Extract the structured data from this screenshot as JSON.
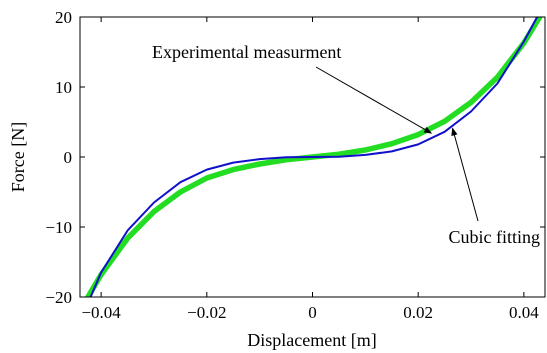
{
  "chart_data": {
    "type": "line",
    "title": "",
    "xlabel": "Displacement [m]",
    "ylabel": "Force [N]",
    "xlim": [
      -0.044,
      0.044
    ],
    "ylim": [
      -20,
      20
    ],
    "xticks": [
      -0.04,
      -0.02,
      0,
      0.02,
      0.04
    ],
    "yticks": [
      -20,
      -10,
      0,
      10,
      20
    ],
    "xtick_labels": [
      "−0.04",
      "−0.02",
      "0",
      "0.02",
      "0.04"
    ],
    "ytick_labels": [
      "−20",
      "−10",
      "0",
      "10",
      "20"
    ],
    "grid": false,
    "legend": "none",
    "series": [
      {
        "color": "#22dd22",
        "style": "thick noisy line",
        "x": [
          -0.0425,
          -0.04,
          -0.035,
          -0.03,
          -0.025,
          -0.02,
          -0.015,
          -0.01,
          -0.005,
          0,
          0.005,
          0.01,
          0.015,
          0.02,
          0.025,
          0.03,
          0.035,
          0.04,
          0.043
        ],
        "y": [
          -20,
          -16.8,
          -11.6,
          -7.8,
          -5.0,
          -3.0,
          -1.8,
          -1.0,
          -0.4,
          0,
          0.4,
          1.0,
          1.9,
          3.2,
          5.1,
          7.8,
          11.4,
          16.3,
          20
        ]
      },
      {
        "color": "#1111cc",
        "style": "line",
        "x": [
          -0.042,
          -0.04,
          -0.035,
          -0.03,
          -0.025,
          -0.02,
          -0.015,
          -0.01,
          -0.005,
          0,
          0.005,
          0.01,
          0.015,
          0.02,
          0.025,
          0.03,
          0.035,
          0.04,
          0.0425
        ],
        "y": [
          -20,
          -16.5,
          -10.5,
          -6.5,
          -3.6,
          -1.8,
          -0.8,
          -0.3,
          -0.05,
          0,
          0.05,
          0.3,
          0.8,
          1.8,
          3.6,
          6.5,
          10.5,
          16.5,
          20
        ]
      }
    ],
    "annotations": [
      {
        "text": "Experimental measurment",
        "arrow_to": [
          0.0225,
          3.4
        ]
      },
      {
        "text": "Cubic fitting",
        "arrow_to": [
          0.0265,
          4.1
        ]
      }
    ]
  }
}
